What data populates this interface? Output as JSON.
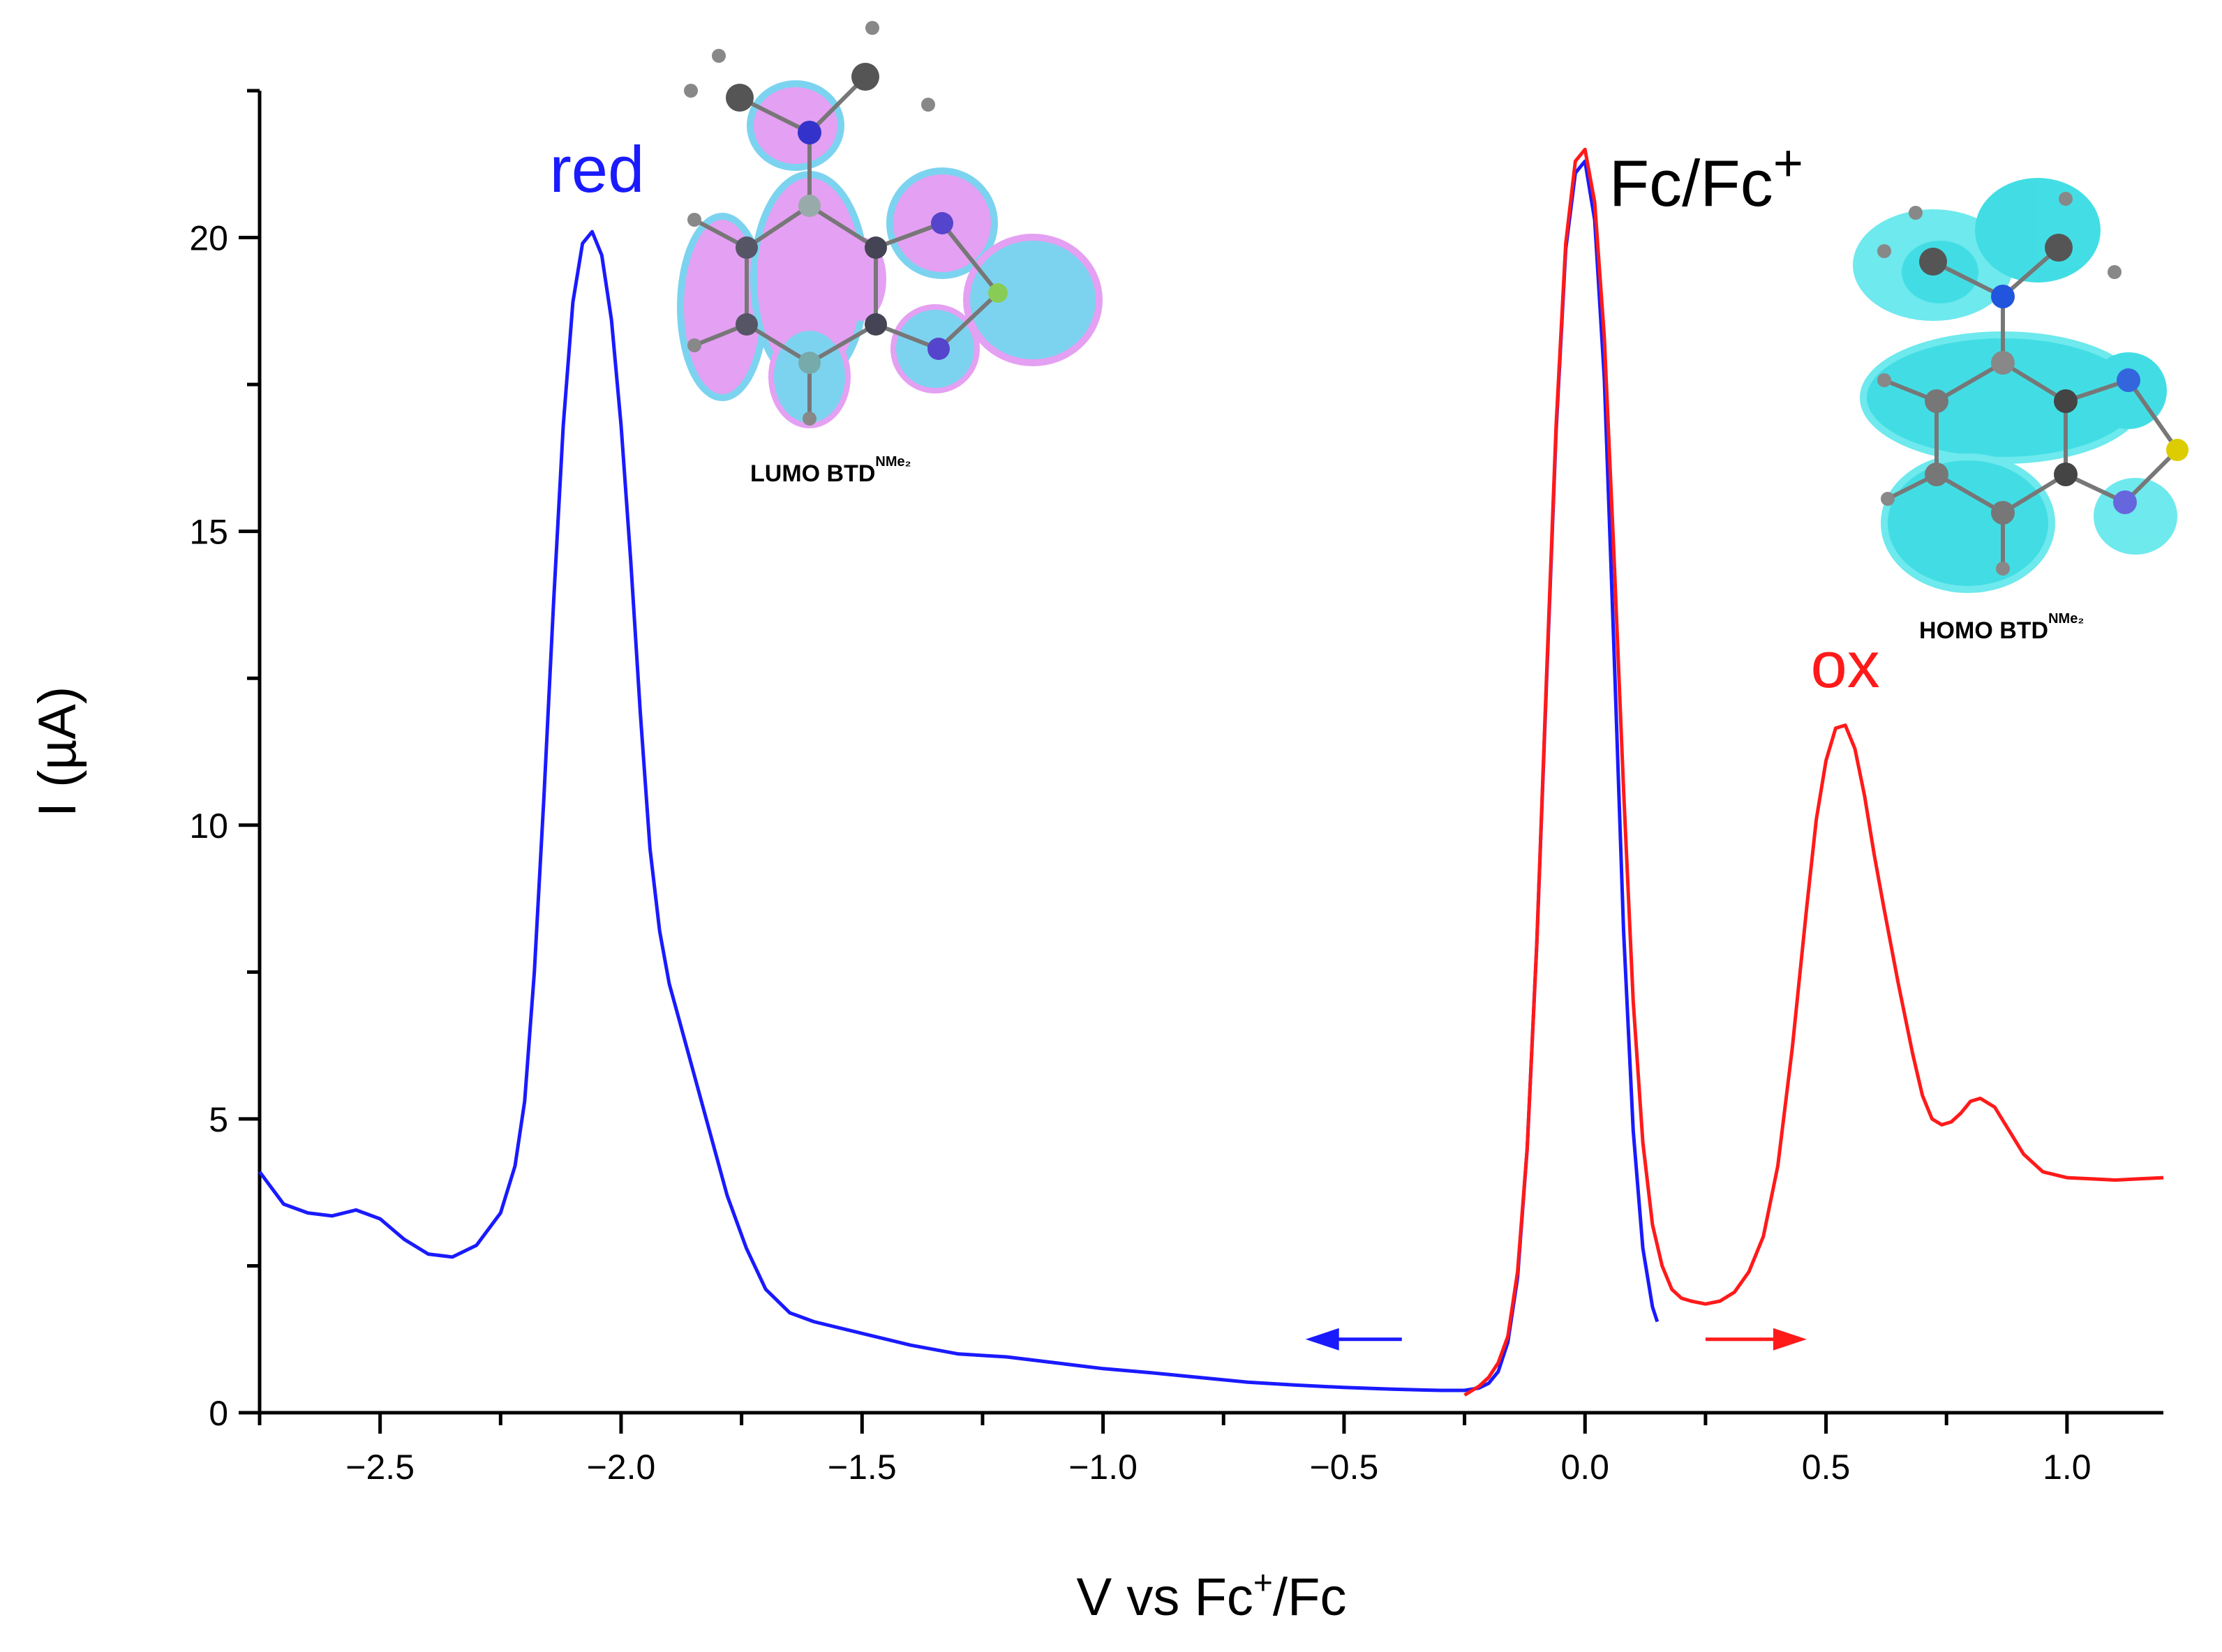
{
  "chart_data": {
    "type": "line",
    "xlabel": {
      "pre": "V vs Fc",
      "sup": "+",
      "post": "/Fc"
    },
    "ylabel": "I (µA)",
    "xlim": [
      -2.75,
      1.2
    ],
    "ylim": [
      0,
      22.5
    ],
    "x_ticks": [
      {
        "value": -2.5,
        "label": "−2.5"
      },
      {
        "value": -2.0,
        "label": "−2.0"
      },
      {
        "value": -1.5,
        "label": "−1.5"
      },
      {
        "value": -1.0,
        "label": "−1.0"
      },
      {
        "value": -0.5,
        "label": "−0.5"
      },
      {
        "value": 0.0,
        "label": "0.0"
      },
      {
        "value": 0.5,
        "label": "0.5"
      },
      {
        "value": 1.0,
        "label": "1.0"
      }
    ],
    "y_ticks": [
      {
        "value": 0,
        "label": "0"
      },
      {
        "value": 5,
        "label": "5"
      },
      {
        "value": 10,
        "label": "10"
      },
      {
        "value": 15,
        "label": "15"
      },
      {
        "value": 20,
        "label": "20"
      }
    ],
    "grid": false,
    "series": [
      {
        "color": "#1a1aff",
        "x": [
          -2.75,
          -2.7,
          -2.65,
          -2.6,
          -2.55,
          -2.5,
          -2.45,
          -2.4,
          -2.35,
          -2.3,
          -2.25,
          -2.22,
          -2.2,
          -2.18,
          -2.16,
          -2.14,
          -2.12,
          -2.1,
          -2.08,
          -2.06,
          -2.04,
          -2.02,
          -2.0,
          -1.98,
          -1.96,
          -1.94,
          -1.92,
          -1.9,
          -1.88,
          -1.85,
          -1.82,
          -1.78,
          -1.74,
          -1.7,
          -1.65,
          -1.6,
          -1.5,
          -1.4,
          -1.3,
          -1.2,
          -1.1,
          -1.0,
          -0.9,
          -0.8,
          -0.7,
          -0.6,
          -0.5,
          -0.4,
          -0.3,
          -0.25,
          -0.22,
          -0.2,
          -0.18,
          -0.16,
          -0.14,
          -0.12,
          -0.1,
          -0.08,
          -0.06,
          -0.04,
          -0.02,
          0.0,
          0.02,
          0.04,
          0.06,
          0.08,
          0.1,
          0.12,
          0.14,
          0.15
        ],
        "y": [
          4.1,
          3.55,
          3.4,
          3.35,
          3.45,
          3.3,
          2.95,
          2.7,
          2.65,
          2.85,
          3.4,
          4.2,
          5.3,
          7.5,
          10.5,
          13.8,
          16.8,
          18.9,
          19.9,
          20.1,
          19.7,
          18.6,
          16.8,
          14.5,
          11.9,
          9.6,
          8.2,
          7.3,
          6.7,
          5.8,
          4.9,
          3.7,
          2.8,
          2.1,
          1.7,
          1.55,
          1.35,
          1.15,
          1.0,
          0.95,
          0.85,
          0.75,
          0.68,
          0.6,
          0.52,
          0.47,
          0.43,
          0.4,
          0.38,
          0.38,
          0.42,
          0.5,
          0.7,
          1.2,
          2.3,
          4.5,
          8.0,
          12.4,
          16.7,
          19.8,
          21.1,
          21.3,
          20.3,
          17.6,
          13.0,
          8.2,
          4.8,
          2.8,
          1.8,
          1.55
        ]
      },
      {
        "color": "#ff1a1a",
        "x": [
          -0.25,
          -0.22,
          -0.2,
          -0.18,
          -0.16,
          -0.14,
          -0.12,
          -0.1,
          -0.08,
          -0.06,
          -0.04,
          -0.02,
          0.0,
          0.02,
          0.04,
          0.06,
          0.08,
          0.1,
          0.12,
          0.14,
          0.16,
          0.18,
          0.2,
          0.22,
          0.25,
          0.28,
          0.31,
          0.34,
          0.37,
          0.4,
          0.43,
          0.46,
          0.48,
          0.5,
          0.52,
          0.54,
          0.56,
          0.58,
          0.6,
          0.62,
          0.65,
          0.68,
          0.7,
          0.72,
          0.74,
          0.76,
          0.78,
          0.8,
          0.82,
          0.85,
          0.88,
          0.91,
          0.95,
          1.0,
          1.05,
          1.1,
          1.15,
          1.2
        ],
        "y": [
          0.3,
          0.45,
          0.6,
          0.85,
          1.3,
          2.4,
          4.5,
          8.0,
          12.5,
          16.8,
          19.9,
          21.3,
          21.5,
          20.6,
          18.3,
          14.6,
          10.6,
          7.0,
          4.6,
          3.2,
          2.5,
          2.1,
          1.95,
          1.9,
          1.85,
          1.9,
          2.05,
          2.4,
          3.0,
          4.2,
          6.2,
          8.6,
          10.1,
          11.1,
          11.65,
          11.7,
          11.3,
          10.5,
          9.5,
          8.6,
          7.3,
          6.1,
          5.4,
          5.0,
          4.9,
          4.95,
          5.1,
          5.3,
          5.35,
          5.2,
          4.8,
          4.4,
          4.1,
          4.0,
          3.98,
          3.96,
          3.98,
          4.0
        ]
      }
    ],
    "annotations": {
      "red": {
        "text": "red",
        "color": "#1a1aff"
      },
      "fc": {
        "text": "Fc/Fc",
        "sup": "+",
        "color": "#000000"
      },
      "ox": {
        "text": "ox",
        "color": "#ff1a1a"
      }
    },
    "arrows": [
      {
        "color": "#1a1aff",
        "direction": "left",
        "x_from": -0.38,
        "x_to": -0.58,
        "y": 1.25
      },
      {
        "color": "#ff1a1a",
        "direction": "right",
        "x_from": 0.25,
        "x_to": 0.46,
        "y": 1.25
      }
    ],
    "insets": [
      {
        "name": "lumo",
        "caption": "LUMO BTD",
        "caption_sup": "NMe₂",
        "lobe_colors": [
          "#e090f0",
          "#66ccee"
        ]
      },
      {
        "name": "homo",
        "caption": "HOMO BTD",
        "caption_sup": "NMe₂",
        "lobe_colors": [
          "#22d8e0",
          "#55e6ea"
        ]
      }
    ]
  }
}
